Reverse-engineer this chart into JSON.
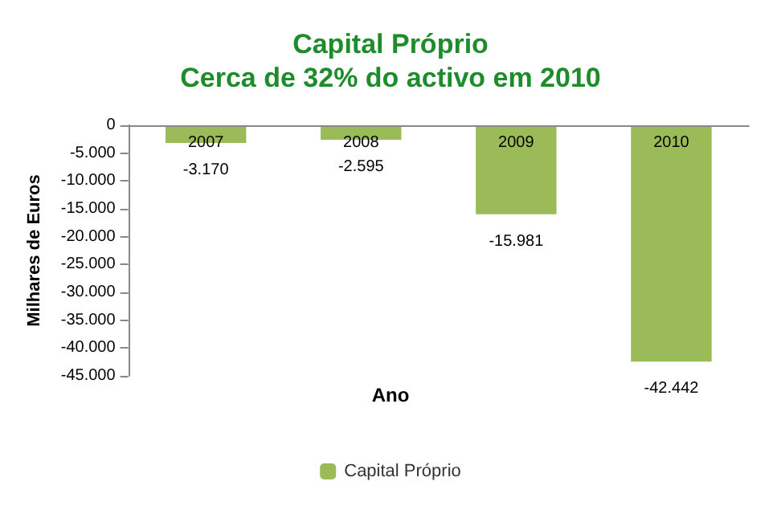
{
  "chart_data": {
    "type": "bar",
    "title": "Capital Próprio",
    "subtitle": "Cerca de 32% do activo em 2010",
    "xlabel": "Ano",
    "ylabel": "Milhares de Euros",
    "categories": [
      "2007",
      "2008",
      "2009",
      "2010"
    ],
    "series": [
      {
        "name": "Capital Próprio",
        "color": "#9bbb59",
        "values": [
          -3170,
          -2595,
          -15981,
          -42442
        ],
        "value_labels": [
          "-3.170",
          "-2.595",
          "-15.981",
          "-42.442"
        ]
      }
    ],
    "ylim": [
      -45000,
      0
    ],
    "yticks": [
      {
        "value": -45000,
        "label": "-45.000"
      },
      {
        "value": -40000,
        "label": "-40.000"
      },
      {
        "value": -35000,
        "label": "-35.000"
      },
      {
        "value": -30000,
        "label": "-30.000"
      },
      {
        "value": -25000,
        "label": "-25.000"
      },
      {
        "value": -20000,
        "label": "-20.000"
      },
      {
        "value": -15000,
        "label": "-15.000"
      },
      {
        "value": -10000,
        "label": "-10.000"
      },
      {
        "value": -5000,
        "label": "-5.000"
      },
      {
        "value": 0,
        "label": "0"
      }
    ],
    "grid": false,
    "legend": "bottom"
  }
}
